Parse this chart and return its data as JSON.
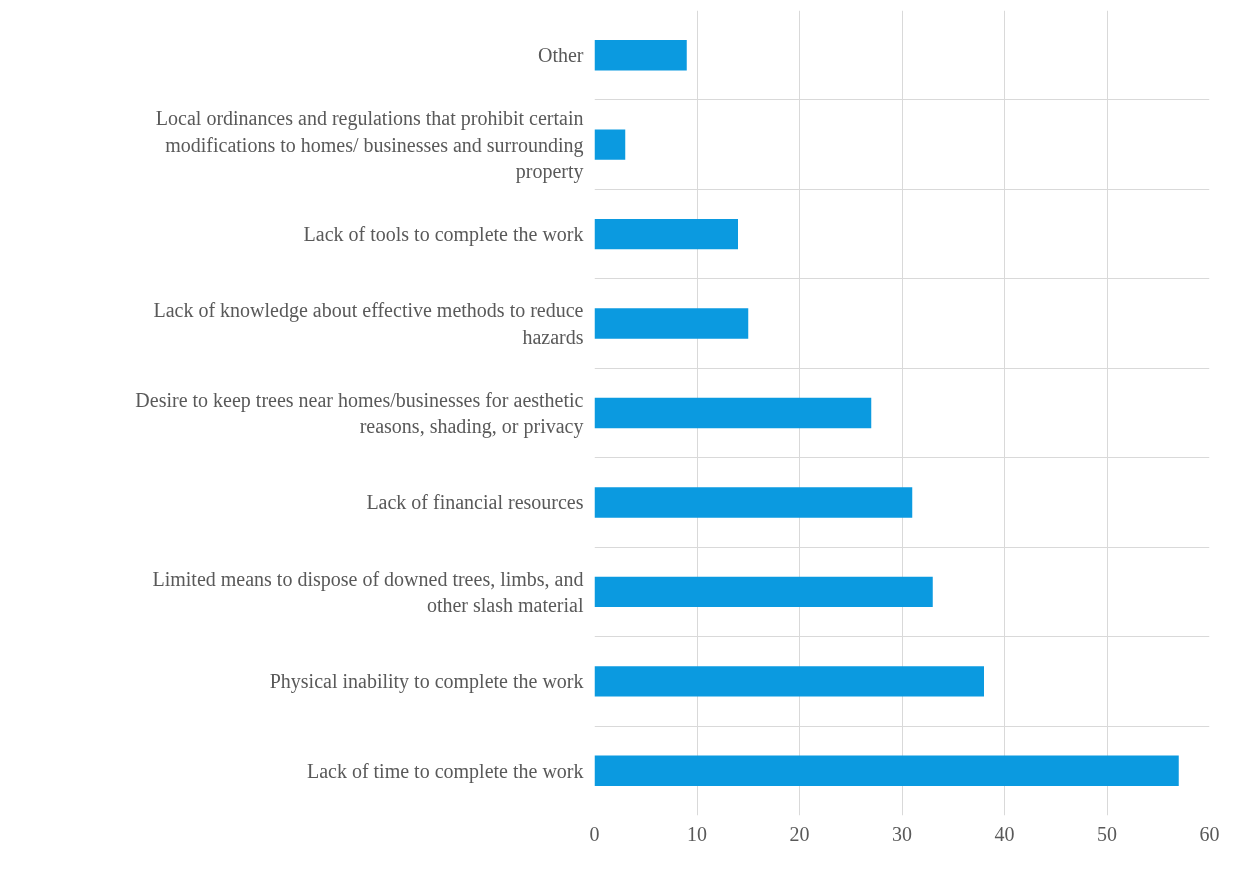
{
  "chart_data": {
    "type": "bar",
    "orientation": "horizontal",
    "categories": [
      "Other",
      "Local ordinances and regulations that prohibit certain modifications to homes/ businesses and surrounding property",
      "Lack of tools to complete the work",
      "Lack of knowledge about effective methods to reduce hazards",
      "Desire to keep trees near homes/businesses for aesthetic reasons, shading, or privacy",
      "Lack of financial resources",
      "Limited means to dispose of downed trees, limbs, and other slash material",
      "Physical inability to complete the work",
      "Lack of time to complete the work"
    ],
    "values": [
      9,
      3,
      14,
      15,
      27,
      31,
      33,
      38,
      57
    ],
    "color": "#0b9ae0",
    "xlim": [
      0,
      60
    ],
    "xticks": [
      0,
      10,
      20,
      30,
      40,
      50,
      60
    ],
    "grid": true
  }
}
